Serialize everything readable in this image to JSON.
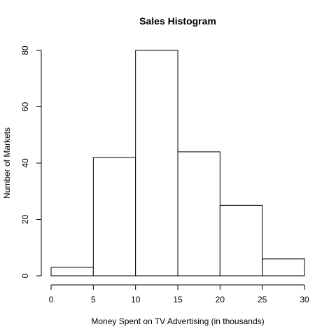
{
  "chart_data": {
    "type": "bar",
    "title": "Sales Histogram",
    "xlabel": "Money Spent on TV Advertising (in thousands)",
    "ylabel": "Number of Markets",
    "bins": [
      {
        "start": 0,
        "end": 5,
        "count": 3
      },
      {
        "start": 5,
        "end": 10,
        "count": 42
      },
      {
        "start": 10,
        "end": 15,
        "count": 80
      },
      {
        "start": 15,
        "end": 20,
        "count": 44
      },
      {
        "start": 20,
        "end": 25,
        "count": 25
      },
      {
        "start": 25,
        "end": 30,
        "count": 6
      }
    ],
    "xlim": [
      0,
      30
    ],
    "ylim": [
      0,
      80
    ],
    "xticks": [
      "0",
      "5",
      "10",
      "15",
      "20",
      "25",
      "30"
    ],
    "yticks": [
      "0",
      "20",
      "40",
      "60",
      "80"
    ],
    "grid": false,
    "colors": {
      "fill": "#ffffff",
      "stroke": "#000000"
    }
  }
}
